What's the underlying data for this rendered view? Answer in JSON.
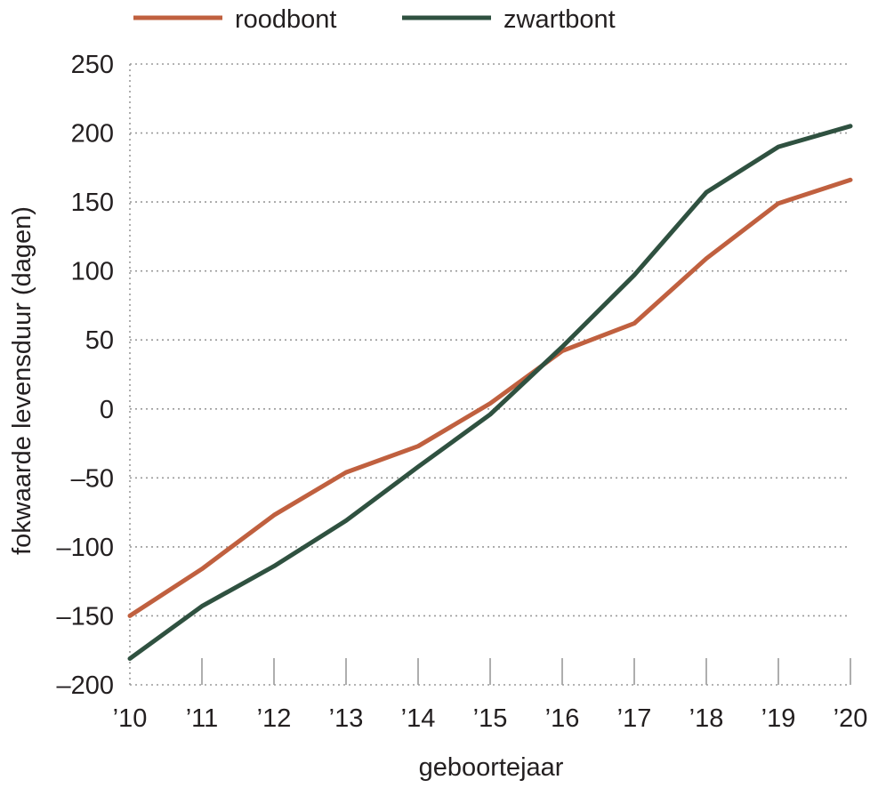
{
  "chart_data": {
    "type": "line",
    "title": "",
    "xlabel": "geboortejaar",
    "ylabel": "fokwaarde levensduur (dagen)",
    "categories": [
      "’10",
      "’11",
      "’12",
      "’13",
      "’14",
      "’15",
      "’16",
      "’17",
      "’18",
      "’19",
      "’20"
    ],
    "x": [
      2010,
      2011,
      2012,
      2013,
      2014,
      2015,
      2016,
      2017,
      2018,
      2019,
      2020
    ],
    "ylim": [
      -200,
      250
    ],
    "yticks": [
      -200,
      -150,
      -100,
      -50,
      0,
      50,
      100,
      150,
      200,
      250
    ],
    "ytick_labels": [
      "–200",
      "–150",
      "–100",
      "–50",
      "0",
      "50",
      "100",
      "150",
      "200",
      "250"
    ],
    "grid": true,
    "legend_position": "top-left",
    "series": [
      {
        "name": "roodbont",
        "color": "#c0603f",
        "values": [
          -150,
          -116,
          -77,
          -46,
          -27,
          4,
          42,
          62,
          109,
          149,
          166
        ]
      },
      {
        "name": "zwartbont",
        "color": "#2f5140",
        "values": [
          -181,
          -143,
          -114,
          -81,
          -42,
          -4,
          45,
          97,
          157,
          190,
          205
        ]
      }
    ]
  }
}
